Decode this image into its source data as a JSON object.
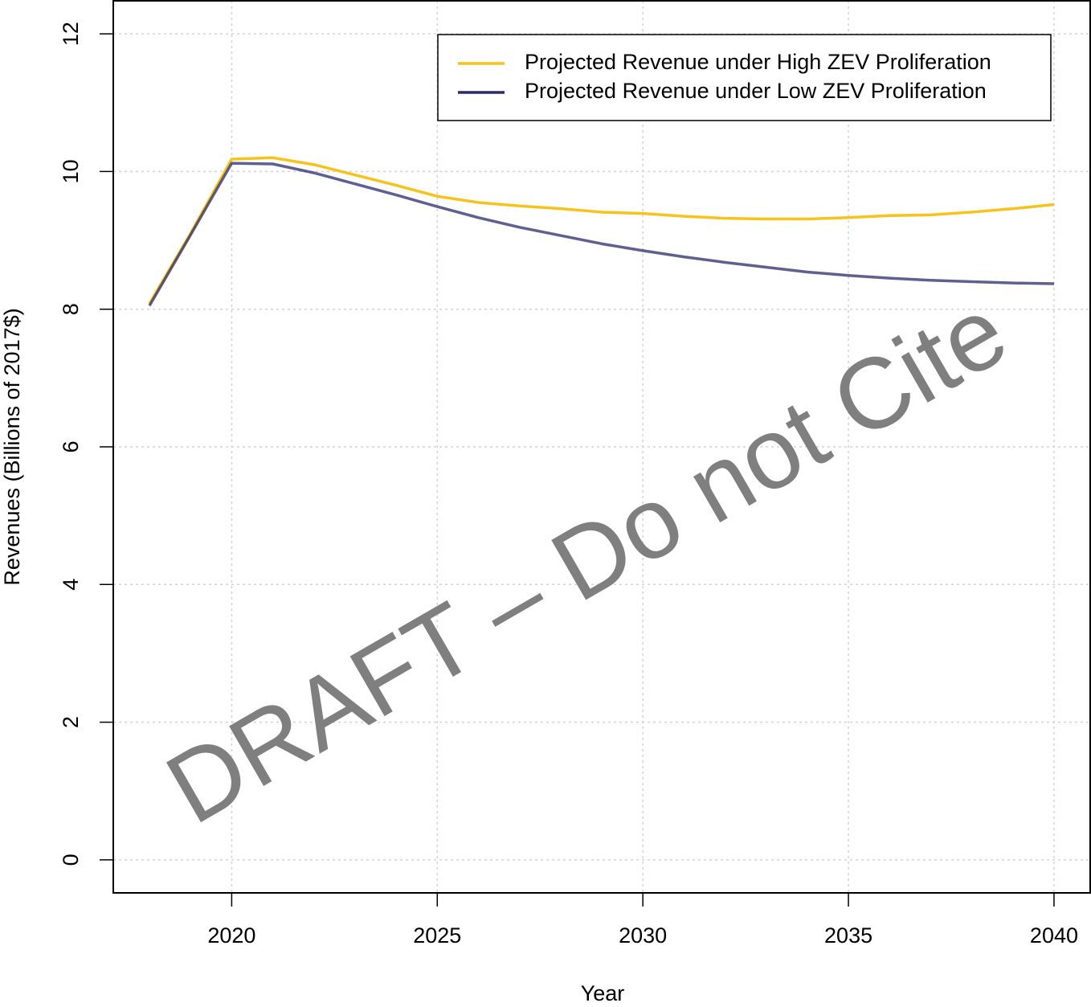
{
  "chart_data": {
    "type": "line",
    "x": [
      2018,
      2019,
      2020,
      2021,
      2022,
      2023,
      2024,
      2025,
      2026,
      2027,
      2028,
      2029,
      2030,
      2031,
      2032,
      2033,
      2034,
      2035,
      2036,
      2037,
      2038,
      2039,
      2040
    ],
    "series": [
      {
        "name": "Projected Revenue under High ZEV Proliferation",
        "color": "#f7c31a",
        "values": [
          8.08,
          9.1,
          10.18,
          10.2,
          10.1,
          9.95,
          9.8,
          9.64,
          9.55,
          9.5,
          9.46,
          9.41,
          9.39,
          9.35,
          9.32,
          9.31,
          9.31,
          9.33,
          9.36,
          9.37,
          9.41,
          9.46,
          9.52
        ]
      },
      {
        "name": "Projected Revenue under Low ZEV Proliferation",
        "color": "#2b2a6c",
        "values": [
          8.05,
          9.08,
          10.12,
          10.11,
          9.98,
          9.82,
          9.66,
          9.49,
          9.33,
          9.19,
          9.07,
          8.95,
          8.85,
          8.76,
          8.68,
          8.61,
          8.54,
          8.49,
          8.45,
          8.42,
          8.4,
          8.38,
          8.37
        ]
      }
    ],
    "xlabel": "Year",
    "ylabel": "Revenues (Billions of 2017$)",
    "annotation": "DRAFT – Do not Cite",
    "xlim": [
      2017.12,
      2040.88
    ],
    "xticks": [
      2020,
      2025,
      2030,
      2035,
      2040
    ],
    "ylim": [
      -0.48,
      12.48
    ],
    "yticks": [
      0,
      2,
      4,
      6,
      8,
      10,
      12
    ],
    "grid": true,
    "legend": "top-right"
  }
}
